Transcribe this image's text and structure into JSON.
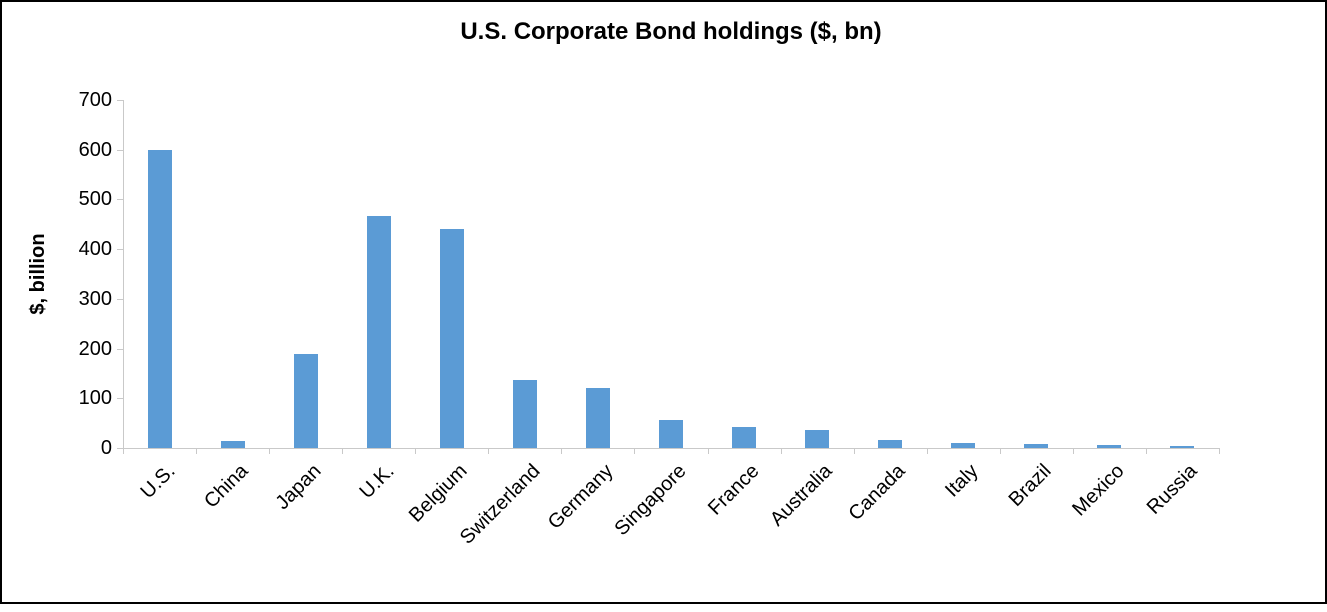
{
  "chart_data": {
    "type": "bar",
    "title": "U.S. Corporate Bond holdings ($, bn)",
    "ylabel": "$, billion",
    "xlabel": "",
    "categories": [
      "U.S.",
      "China",
      "Japan",
      "U.K.",
      "Belgium",
      "Switzerland",
      "Germany",
      "Singapore",
      "France",
      "Australia",
      "Canada",
      "Italy",
      "Brazil",
      "Mexico",
      "Russia"
    ],
    "values": [
      600,
      15,
      190,
      467,
      440,
      137,
      120,
      57,
      43,
      37,
      17,
      11,
      9,
      7,
      5
    ],
    "ylim": [
      0,
      700
    ],
    "yticks": [
      0,
      100,
      200,
      300,
      400,
      500,
      600,
      700
    ],
    "grid": false,
    "legend_position": "none",
    "bar_color": "#5b9bd5",
    "axis_color": "#c9c9c9",
    "text_color": "#000000",
    "frame_border_color": "#000000",
    "x_label_rotation_deg": 45
  }
}
